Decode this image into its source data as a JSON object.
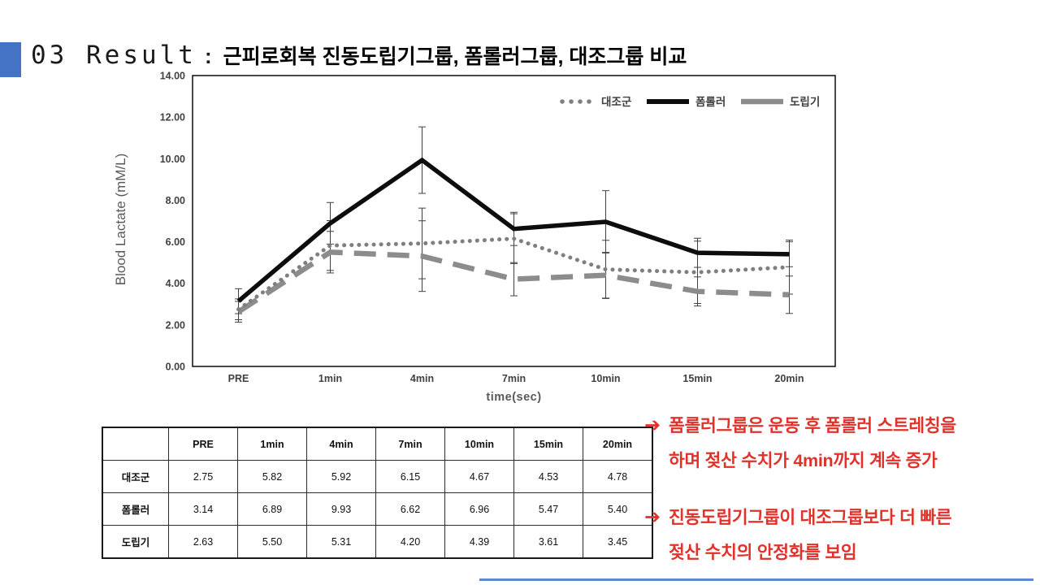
{
  "slide": {
    "title_number": "03 Result",
    "title_separator": ":",
    "title_text": "근피로회복 진동도립기그룹, 폼롤러그룹, 대조그룹 비교",
    "accent_color": "#4472C4"
  },
  "chart_data": {
    "type": "line",
    "title": "",
    "xlabel": "time(sec)",
    "ylabel": "Blood Lactate (mM/L)",
    "ylim": [
      0,
      14
    ],
    "ytick_step": 2,
    "grid": false,
    "legend_position": "top-right",
    "categories": [
      "PRE",
      "1min",
      "4min",
      "7min",
      "10min",
      "15min",
      "20min"
    ],
    "series": [
      {
        "name": "대조군",
        "style": "dotted",
        "color": "#7f7f7f",
        "values": [
          2.75,
          5.82,
          5.92,
          6.15,
          4.67,
          4.53,
          4.78
        ],
        "errors": [
          0.5,
          1.2,
          1.7,
          1.2,
          1.4,
          1.5,
          1.3
        ]
      },
      {
        "name": "폼롤러",
        "style": "solid",
        "color": "#0d0d0d",
        "values": [
          3.14,
          6.89,
          9.93,
          6.62,
          6.96,
          5.47,
          5.4
        ],
        "errors": [
          0.6,
          1.0,
          1.6,
          0.8,
          1.5,
          0.7,
          0.6
        ]
      },
      {
        "name": "도립기",
        "style": "dashed",
        "color": "#8c8c8c",
        "values": [
          2.63,
          5.5,
          5.31,
          4.2,
          4.39,
          3.61,
          3.45
        ],
        "errors": [
          0.5,
          1.0,
          1.7,
          0.8,
          1.1,
          0.7,
          0.9
        ]
      }
    ]
  },
  "table": {
    "columns": [
      "",
      "PRE",
      "1min",
      "4min",
      "7min",
      "10min",
      "15min",
      "20min"
    ],
    "rows": [
      {
        "label": "대조군",
        "values": [
          "2.75",
          "5.82",
          "5.92",
          "6.15",
          "4.67",
          "4.53",
          "4.78"
        ]
      },
      {
        "label": "폼롤러",
        "values": [
          "3.14",
          "6.89",
          "9.93",
          "6.62",
          "6.96",
          "5.47",
          "5.40"
        ]
      },
      {
        "label": "도립기",
        "values": [
          "2.63",
          "5.50",
          "5.31",
          "4.20",
          "4.39",
          "3.61",
          "3.45"
        ]
      }
    ]
  },
  "annotations": {
    "color": "#e0322b",
    "arrow": "➔",
    "items": [
      {
        "line1": "폼롤러그룹은 운동 후 폼롤러 스트레칭을",
        "line2": "하며 젖산 수치가 4min까지 계속 증가"
      },
      {
        "line1": "진동도립기그룹이 대조그룹보다 더 빠른",
        "line2": "젖산 수치의 안정화를 보임"
      }
    ]
  }
}
